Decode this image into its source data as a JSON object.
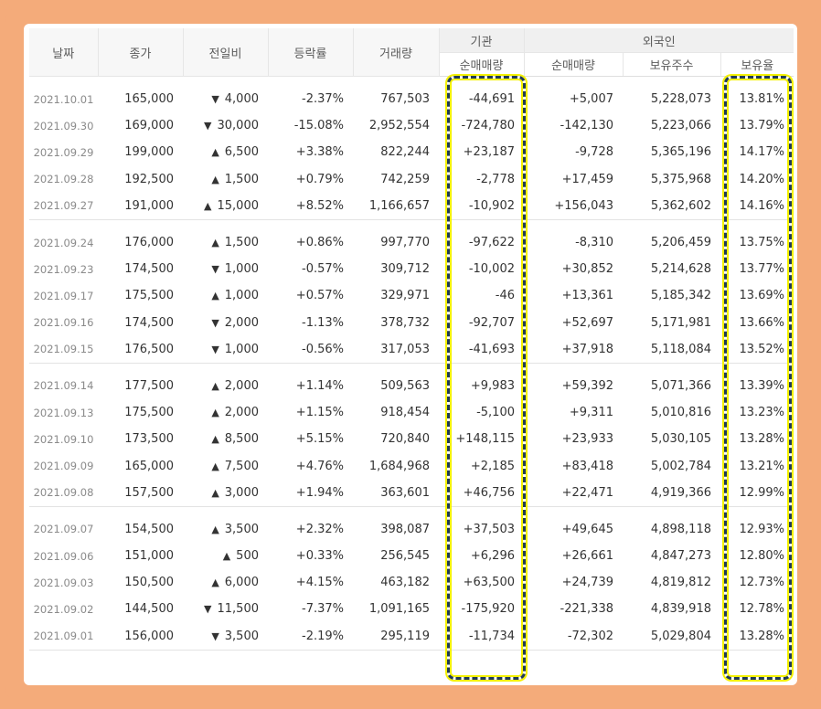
{
  "headers": {
    "date": "날짜",
    "close": "종가",
    "change": "전일비",
    "rate": "등락률",
    "volume": "거래량",
    "institution_group": "기관",
    "institution_net": "순매매량",
    "foreign_group": "외국인",
    "foreign_net": "순매매량",
    "foreign_holdings": "보유주수",
    "foreign_ratio": "보유율"
  },
  "colors": {
    "up": "#d60000",
    "down": "#1a62d6",
    "highlight_border": "#203a55",
    "highlight_glow": "#f4f100",
    "frame": "#f4ab7a"
  },
  "groups": [
    [
      {
        "date": "2021.10.01",
        "close": "165,000",
        "dir": "down",
        "change": "4,000",
        "rate": "-2.37%",
        "volume": "767,503",
        "inst": "-44,691",
        "frgn": "+5,007",
        "hold": "5,228,073",
        "ratio": "13.81%"
      },
      {
        "date": "2021.09.30",
        "close": "169,000",
        "dir": "down",
        "change": "30,000",
        "rate": "-15.08%",
        "volume": "2,952,554",
        "inst": "-724,780",
        "frgn": "-142,130",
        "hold": "5,223,066",
        "ratio": "13.79%"
      },
      {
        "date": "2021.09.29",
        "close": "199,000",
        "dir": "up",
        "change": "6,500",
        "rate": "+3.38%",
        "volume": "822,244",
        "inst": "+23,187",
        "frgn": "-9,728",
        "hold": "5,365,196",
        "ratio": "14.17%"
      },
      {
        "date": "2021.09.28",
        "close": "192,500",
        "dir": "up",
        "change": "1,500",
        "rate": "+0.79%",
        "volume": "742,259",
        "inst": "-2,778",
        "frgn": "+17,459",
        "hold": "5,375,968",
        "ratio": "14.20%"
      },
      {
        "date": "2021.09.27",
        "close": "191,000",
        "dir": "up",
        "change": "15,000",
        "rate": "+8.52%",
        "volume": "1,166,657",
        "inst": "-10,902",
        "frgn": "+156,043",
        "hold": "5,362,602",
        "ratio": "14.16%"
      }
    ],
    [
      {
        "date": "2021.09.24",
        "close": "176,000",
        "dir": "up",
        "change": "1,500",
        "rate": "+0.86%",
        "volume": "997,770",
        "inst": "-97,622",
        "frgn": "-8,310",
        "hold": "5,206,459",
        "ratio": "13.75%"
      },
      {
        "date": "2021.09.23",
        "close": "174,500",
        "dir": "down",
        "change": "1,000",
        "rate": "-0.57%",
        "volume": "309,712",
        "inst": "-10,002",
        "frgn": "+30,852",
        "hold": "5,214,628",
        "ratio": "13.77%"
      },
      {
        "date": "2021.09.17",
        "close": "175,500",
        "dir": "up",
        "change": "1,000",
        "rate": "+0.57%",
        "volume": "329,971",
        "inst": "-46",
        "frgn": "+13,361",
        "hold": "5,185,342",
        "ratio": "13.69%"
      },
      {
        "date": "2021.09.16",
        "close": "174,500",
        "dir": "down",
        "change": "2,000",
        "rate": "-1.13%",
        "volume": "378,732",
        "inst": "-92,707",
        "frgn": "+52,697",
        "hold": "5,171,981",
        "ratio": "13.66%"
      },
      {
        "date": "2021.09.15",
        "close": "176,500",
        "dir": "down",
        "change": "1,000",
        "rate": "-0.56%",
        "volume": "317,053",
        "inst": "-41,693",
        "frgn": "+37,918",
        "hold": "5,118,084",
        "ratio": "13.52%"
      }
    ],
    [
      {
        "date": "2021.09.14",
        "close": "177,500",
        "dir": "up",
        "change": "2,000",
        "rate": "+1.14%",
        "volume": "509,563",
        "inst": "+9,983",
        "frgn": "+59,392",
        "hold": "5,071,366",
        "ratio": "13.39%"
      },
      {
        "date": "2021.09.13",
        "close": "175,500",
        "dir": "up",
        "change": "2,000",
        "rate": "+1.15%",
        "volume": "918,454",
        "inst": "-5,100",
        "frgn": "+9,311",
        "hold": "5,010,816",
        "ratio": "13.23%"
      },
      {
        "date": "2021.09.10",
        "close": "173,500",
        "dir": "up",
        "change": "8,500",
        "rate": "+5.15%",
        "volume": "720,840",
        "inst": "+148,115",
        "frgn": "+23,933",
        "hold": "5,030,105",
        "ratio": "13.28%"
      },
      {
        "date": "2021.09.09",
        "close": "165,000",
        "dir": "up",
        "change": "7,500",
        "rate": "+4.76%",
        "volume": "1,684,968",
        "inst": "+2,185",
        "frgn": "+83,418",
        "hold": "5,002,784",
        "ratio": "13.21%"
      },
      {
        "date": "2021.09.08",
        "close": "157,500",
        "dir": "up",
        "change": "3,000",
        "rate": "+1.94%",
        "volume": "363,601",
        "inst": "+46,756",
        "frgn": "+22,471",
        "hold": "4,919,366",
        "ratio": "12.99%"
      }
    ],
    [
      {
        "date": "2021.09.07",
        "close": "154,500",
        "dir": "up",
        "change": "3,500",
        "rate": "+2.32%",
        "volume": "398,087",
        "inst": "+37,503",
        "frgn": "+49,645",
        "hold": "4,898,118",
        "ratio": "12.93%"
      },
      {
        "date": "2021.09.06",
        "close": "151,000",
        "dir": "up",
        "change": "500",
        "rate": "+0.33%",
        "volume": "256,545",
        "inst": "+6,296",
        "frgn": "+26,661",
        "hold": "4,847,273",
        "ratio": "12.80%"
      },
      {
        "date": "2021.09.03",
        "close": "150,500",
        "dir": "up",
        "change": "6,000",
        "rate": "+4.15%",
        "volume": "463,182",
        "inst": "+63,500",
        "frgn": "+24,739",
        "hold": "4,819,812",
        "ratio": "12.73%"
      },
      {
        "date": "2021.09.02",
        "close": "144,500",
        "dir": "down",
        "change": "11,500",
        "rate": "-7.37%",
        "volume": "1,091,165",
        "inst": "-175,920",
        "frgn": "-221,338",
        "hold": "4,839,918",
        "ratio": "12.78%"
      },
      {
        "date": "2021.09.01",
        "close": "156,000",
        "dir": "down",
        "change": "3,500",
        "rate": "-2.19%",
        "volume": "295,119",
        "inst": "-11,734",
        "frgn": "-72,302",
        "hold": "5,029,804",
        "ratio": "13.28%"
      }
    ]
  ]
}
